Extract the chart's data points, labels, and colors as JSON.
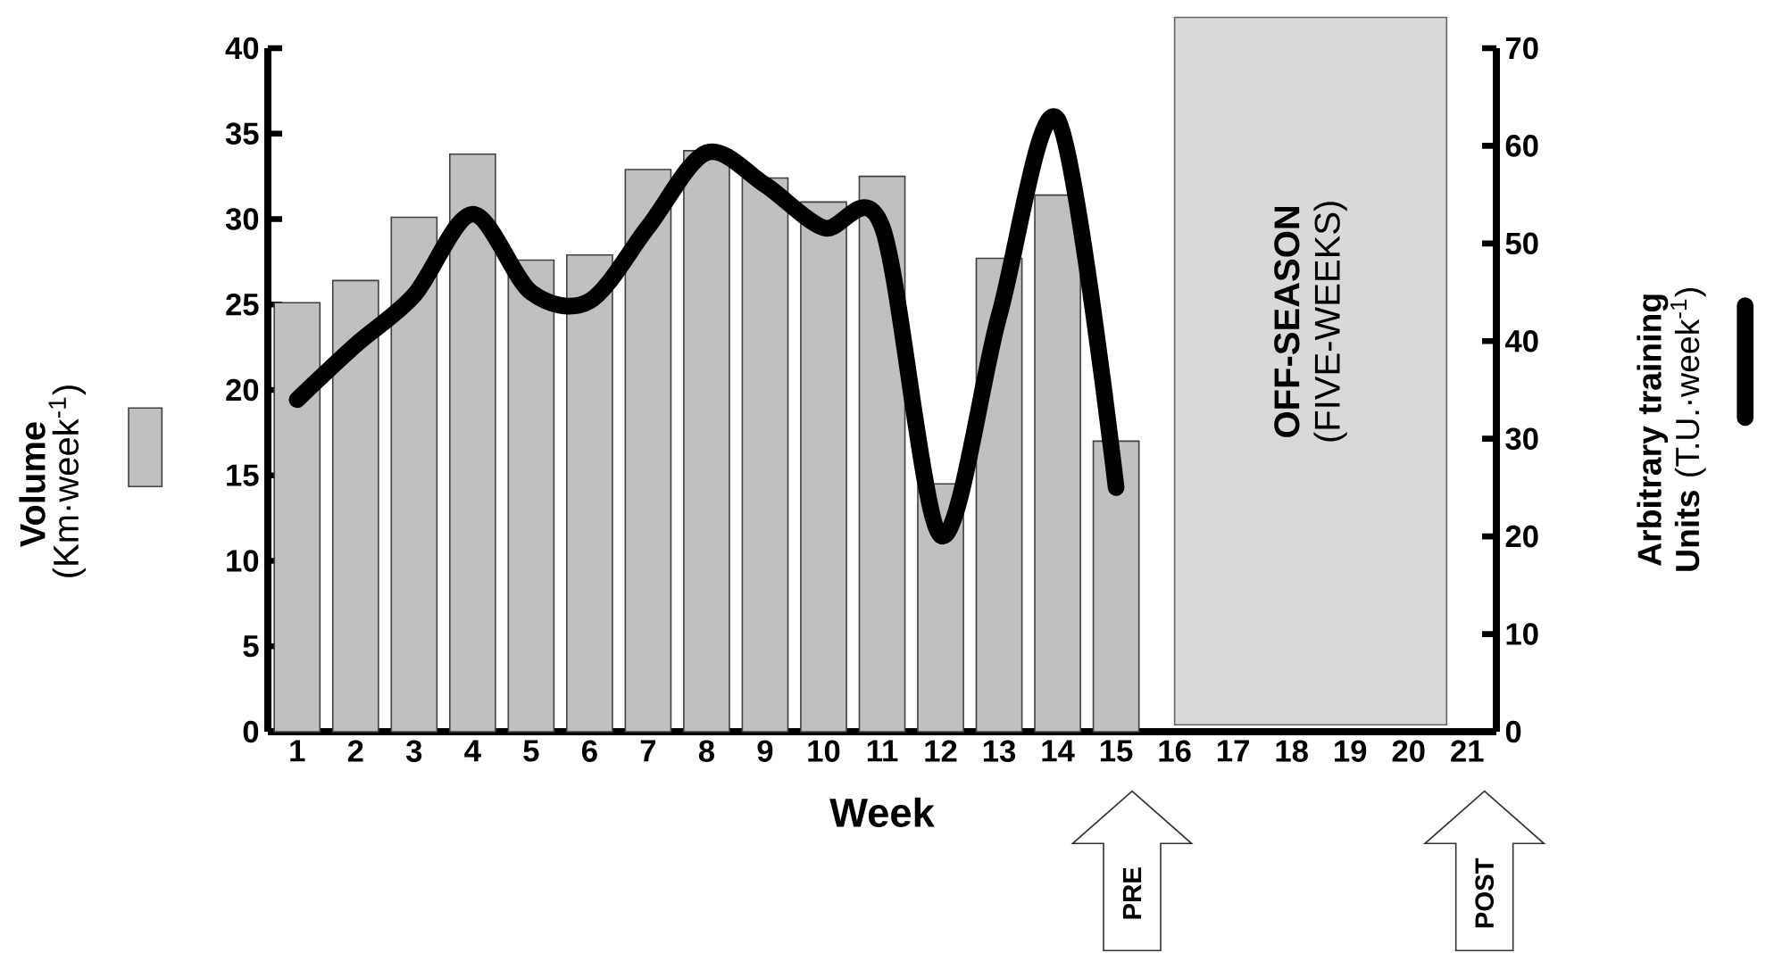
{
  "chart_data": {
    "type": "bar",
    "xlabel": "Week",
    "ylabel": "**Volume** (Km·week$^{-1}$)",
    "y2label": "**Arbitrary training Units** (T.U.·week$^{-1}$)",
    "x": [
      1,
      2,
      3,
      4,
      5,
      6,
      7,
      8,
      9,
      10,
      11,
      12,
      13,
      14,
      15
    ],
    "xlim": [
      0.5,
      21.5
    ],
    "xticks": [
      1,
      2,
      3,
      4,
      5,
      6,
      7,
      8,
      9,
      10,
      11,
      12,
      13,
      14,
      15,
      16,
      17,
      18,
      19,
      20,
      21
    ],
    "ylim": [
      0,
      40
    ],
    "yticks": [
      0,
      5,
      10,
      15,
      20,
      25,
      30,
      35,
      40
    ],
    "y2lim": [
      0,
      70
    ],
    "y2ticks": [
      0,
      10,
      20,
      30,
      40,
      50,
      60,
      70
    ],
    "series": [
      {
        "color": "#c0c0c0",
        "values": [
          25.1,
          26.4,
          30.1,
          33.8,
          27.6,
          27.9,
          32.9,
          34.0,
          32.4,
          31.0,
          32.5,
          14.5,
          27.7,
          31.4,
          17.0
        ]
      },
      {
        "type": "line",
        "axis": "y2",
        "color": "#000000",
        "line_style": "solid",
        "values": [
          34.0,
          39.6,
          44.7,
          53.0,
          45.0,
          44.1,
          51.7,
          59.3,
          56.0,
          51.6,
          51.7,
          20.1,
          42.6,
          62.7,
          25.0
        ]
      }
    ],
    "bands": [
      {
        "axis": "x",
        "from": 16,
        "to": 20.65,
        "label": "**OFF-SEASON** (FIVE-WEEKS)",
        "color": "#d9d9d9"
      }
    ],
    "annotations": [
      "PRE",
      "POST"
    ]
  }
}
